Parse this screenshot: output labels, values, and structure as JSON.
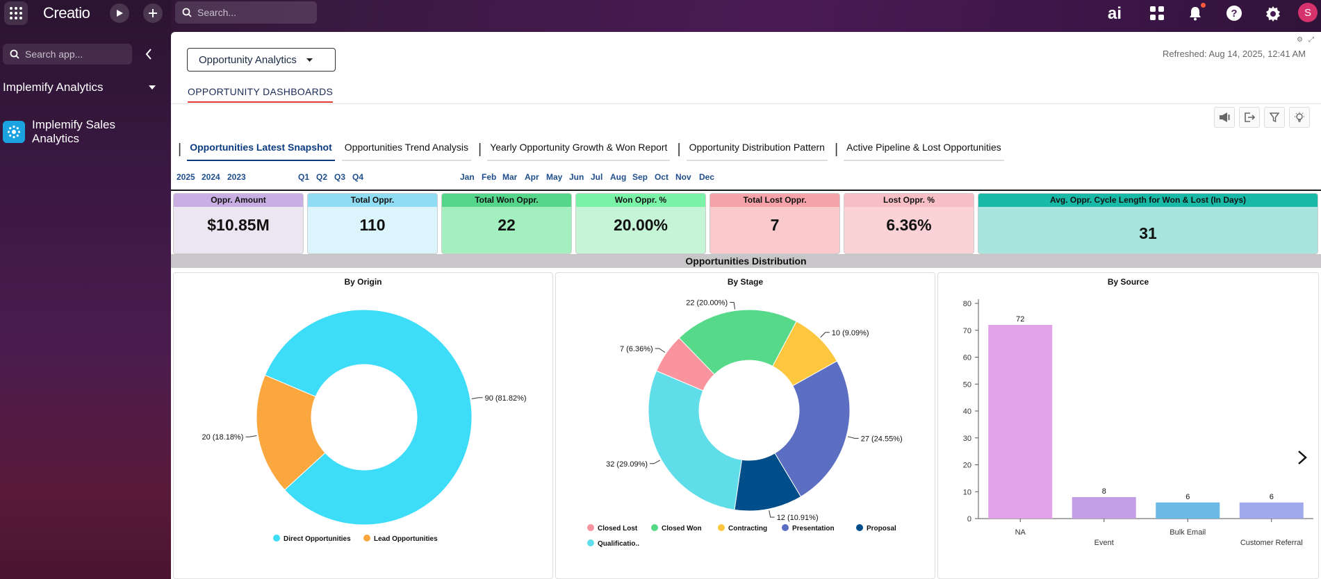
{
  "topbar": {
    "logo": "Creatio",
    "search_placeholder": "Search...",
    "ai_label": "ai",
    "avatar_initial": "S"
  },
  "sidebar": {
    "search_placeholder": "Search app...",
    "workspace": "Implemify Analytics",
    "items": [
      {
        "label": "Implemify Sales Analytics"
      }
    ]
  },
  "dashboard": {
    "selector_label": "Opportunity Analytics",
    "refreshed": "Refreshed: Aug 14, 2025, 12:41 AM",
    "section_tab": "OPPORTUNITY DASHBOARDS",
    "report_tabs": [
      "Opportunities Latest Snapshot",
      "Opportunities Trend Analysis",
      "Yearly Opportunity Growth & Won Report",
      "Opportunity Distribution Pattern",
      "Active Pipeline & Lost Opportunities"
    ],
    "years": [
      "2025",
      "2024",
      "2023"
    ],
    "quarters": [
      "Q1",
      "Q2",
      "Q3",
      "Q4"
    ],
    "months": [
      "Jan",
      "Feb",
      "Mar",
      "Apr",
      "May",
      "Jun",
      "Jul",
      "Aug",
      "Sep",
      "Oct",
      "Nov",
      "Dec"
    ],
    "kpis": [
      {
        "label": "Oppr. Amount",
        "value": "$10.85M",
        "head": "#c9aee3",
        "body": "#ece6f3"
      },
      {
        "label": "Total Oppr.",
        "value": "110",
        "head": "#8fdcf3",
        "body": "#dcf4fb"
      },
      {
        "label": "Total Won Oppr.",
        "value": "22",
        "head": "#55d68a",
        "body": "#a4efc0"
      },
      {
        "label": "Won Oppr. %",
        "value": "20.00%",
        "head": "#7af3a8",
        "body": "#c5f4d7"
      },
      {
        "label": "Total Lost Oppr.",
        "value": "7",
        "head": "#f5a3a8",
        "body": "#f9c9cc"
      },
      {
        "label": "Lost Oppr. %",
        "value": "6.36%",
        "head": "#f7bfc5",
        "body": "#fbd3d6"
      },
      {
        "label": "Avg. Oppr. Cycle Length for Won & Lost (In Days)",
        "value": "31",
        "head": "#18b9a6",
        "body": "#a8e5de"
      }
    ],
    "distribution_title": "Opportunities Distribution"
  },
  "chart_data": [
    {
      "type": "pie",
      "title": "By Origin",
      "donut": true,
      "slices": [
        {
          "name": "Direct Opportunities",
          "value": 90,
          "label": "90 (81.82%)",
          "color": "#3ddcf8"
        },
        {
          "name": "Lead Opportunities",
          "value": 20,
          "label": "20 (18.18%)",
          "color": "#f9a73e"
        }
      ],
      "legend": "bottom"
    },
    {
      "type": "pie",
      "title": "By Stage",
      "donut": true,
      "slices": [
        {
          "name": "Contracting",
          "value": 10,
          "label": "10 (9.09%)",
          "color": "#fcc73f"
        },
        {
          "name": "Presentation",
          "value": 27,
          "label": "27 (24.55%)",
          "color": "#5b6ec2"
        },
        {
          "name": "Proposal",
          "value": 12,
          "label": "12 (10.91%)",
          "color": "#024e8a"
        },
        {
          "name": "Qualificatio..",
          "value": 32,
          "label": "32 (29.09%)",
          "color": "#5fdde8"
        },
        {
          "name": "Closed Lost",
          "value": 7,
          "label": "7 (6.36%)",
          "color": "#f9939e"
        },
        {
          "name": "Closed Won",
          "value": 22,
          "label": "22 (20.00%)",
          "color": "#57d98a"
        }
      ],
      "legend_order": [
        "Closed Lost",
        "Closed Won",
        "Contracting",
        "Presentation",
        "Proposal",
        "Qualificatio.."
      ],
      "legend": "bottom"
    },
    {
      "type": "bar",
      "title": "By Source",
      "categories": [
        "NA",
        "Event",
        "Bulk Email",
        "Customer Referral"
      ],
      "values": [
        72,
        8,
        6,
        6
      ],
      "colors": [
        "#e2a2e8",
        "#c49fe6",
        "#6db9e6",
        "#9fa9ec"
      ],
      "ylim": [
        0,
        80
      ],
      "yticks": [
        0,
        10,
        20,
        30,
        40,
        50,
        60,
        70,
        80
      ]
    }
  ]
}
